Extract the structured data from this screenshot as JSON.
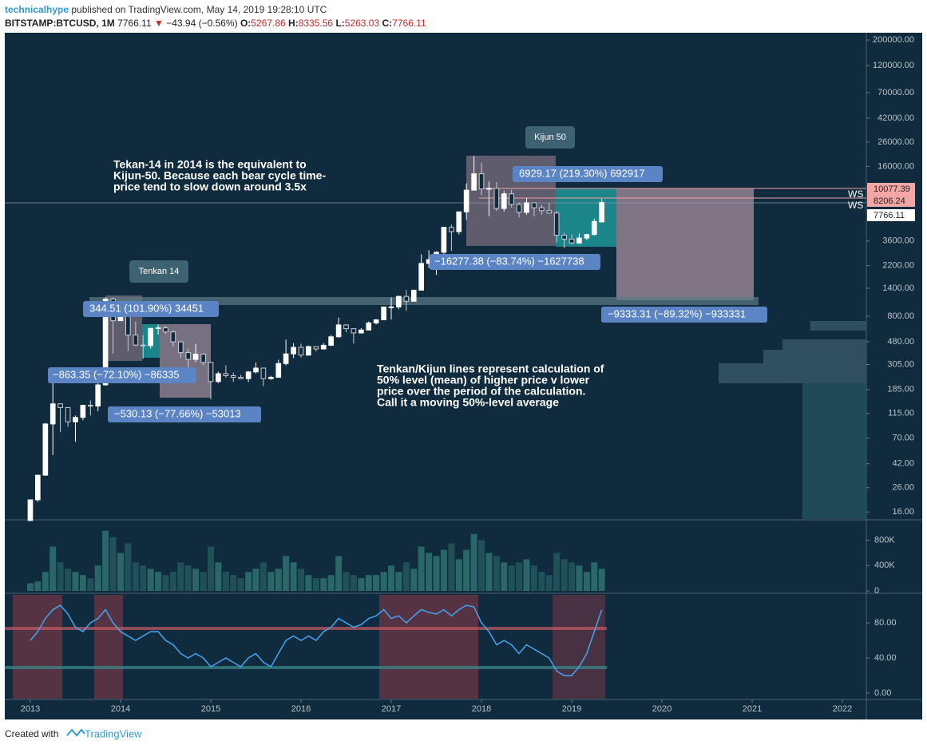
{
  "header": {
    "author": "technicalhype",
    "published": "published on TradingView.com, May 14, 2019 19:28:10 UTC",
    "symbol": "BITSTAMP:BTCUSD, 1M",
    "last": "7766.11",
    "arrow": "▼",
    "change": "−43.94 (−0.56%)",
    "o_label": "O:",
    "o": "5267.86",
    "h_label": "H:",
    "h": "8335.56",
    "l_label": "L:",
    "l": "5263.03",
    "c_label": "C:",
    "c": "7766.11"
  },
  "chart_data": {
    "type": "candlestick",
    "log_scale": true,
    "up_color": "#ffffff",
    "down_color": "#c9cfd4",
    "x": [
      2013.0,
      2013.083,
      2013.167,
      2013.25,
      2013.333,
      2013.417,
      2013.5,
      2013.583,
      2013.667,
      2013.75,
      2013.833,
      2013.917,
      2014.0,
      2014.083,
      2014.167,
      2014.25,
      2014.333,
      2014.417,
      2014.5,
      2014.583,
      2014.667,
      2014.75,
      2014.833,
      2014.917,
      2015.0,
      2015.083,
      2015.167,
      2015.25,
      2015.333,
      2015.417,
      2015.5,
      2015.583,
      2015.667,
      2015.75,
      2015.833,
      2015.917,
      2016.0,
      2016.083,
      2016.167,
      2016.25,
      2016.333,
      2016.417,
      2016.5,
      2016.583,
      2016.667,
      2016.75,
      2016.833,
      2016.917,
      2017.0,
      2017.083,
      2017.167,
      2017.25,
      2017.333,
      2017.417,
      2017.5,
      2017.583,
      2017.667,
      2017.75,
      2017.833,
      2017.917,
      2018.0,
      2018.083,
      2018.167,
      2018.25,
      2018.333,
      2018.417,
      2018.5,
      2018.583,
      2018.667,
      2018.75,
      2018.833,
      2018.917,
      2019.0,
      2019.083,
      2019.167,
      2019.25,
      2019.333
    ],
    "open": [
      13.5,
      20.4,
      33.4,
      93,
      139,
      129,
      97,
      106,
      135,
      133,
      203,
      1129,
      732,
      800,
      550,
      450,
      445,
      628,
      635,
      585,
      480,
      387,
      338,
      375,
      318,
      217,
      254,
      244,
      236,
      230,
      263,
      284,
      230,
      236,
      311,
      377,
      430,
      368,
      437,
      416,
      448,
      531,
      673,
      624,
      573,
      608,
      700,
      745,
      963,
      965,
      1190,
      1080,
      1348,
      2300,
      2480,
      2875,
      4735,
      4340,
      6450,
      9950,
      13800,
      10200,
      10300,
      6900,
      9240,
      7480,
      6390,
      7730,
      7000,
      6610,
      6300,
      4040,
      3740,
      3460,
      3820,
      4100,
      5267.86
    ],
    "high": [
      20.4,
      33.5,
      95,
      266,
      140,
      130,
      110,
      135,
      149,
      230,
      1163,
      1160,
      1000,
      800,
      720,
      550,
      630,
      680,
      660,
      600,
      490,
      420,
      460,
      385,
      320,
      265,
      300,
      260,
      248,
      267,
      317,
      285,
      243,
      336,
      502,
      467,
      463,
      444,
      440,
      467,
      550,
      780,
      680,
      627,
      630,
      720,
      755,
      970,
      1165,
      1210,
      1350,
      1350,
      2760,
      3000,
      2930,
      4770,
      5000,
      6450,
      11400,
      19700,
      17200,
      11800,
      11700,
      9800,
      10000,
      7770,
      8500,
      7750,
      7400,
      7700,
      6550,
      4250,
      4120,
      4200,
      4140,
      5630,
      8335.56
    ],
    "low": [
      13.3,
      19.6,
      33,
      50,
      79,
      88,
      65,
      100,
      110,
      120,
      200,
      380,
      730,
      400,
      440,
      340,
      420,
      555,
      560,
      440,
      350,
      275,
      320,
      300,
      152,
      210,
      235,
      215,
      228,
      215,
      255,
      198,
      225,
      236,
      300,
      347,
      350,
      365,
      396,
      412,
      440,
      520,
      580,
      465,
      567,
      604,
      680,
      745,
      750,
      920,
      890,
      1070,
      1340,
      2100,
      1830,
      2700,
      2950,
      4100,
      5500,
      10700,
      9000,
      5900,
      6550,
      6500,
      7050,
      5750,
      6100,
      5880,
      6100,
      6200,
      3500,
      3120,
      3350,
      3390,
      3650,
      4020,
      5263.03
    ],
    "close": [
      20.4,
      33.4,
      93,
      139,
      129,
      97,
      106,
      135,
      133,
      203,
      1129,
      732,
      800,
      550,
      450,
      445,
      628,
      635,
      585,
      480,
      387,
      338,
      375,
      318,
      217,
      254,
      244,
      236,
      230,
      263,
      284,
      230,
      236,
      311,
      377,
      430,
      368,
      437,
      416,
      448,
      531,
      673,
      624,
      573,
      608,
      700,
      745,
      963,
      965,
      1190,
      1080,
      1348,
      2300,
      2480,
      2875,
      4735,
      4340,
      6450,
      9950,
      13800,
      10200,
      10300,
      6900,
      9240,
      7480,
      6390,
      7730,
      7000,
      6610,
      6300,
      4040,
      3740,
      3460,
      3820,
      4100,
      5320,
      7766.11
    ],
    "xlim": [
      2012.726,
      2022.265
    ],
    "xticks": [
      2013,
      2014,
      2015,
      2016,
      2017,
      2018,
      2019,
      2020,
      2021,
      2022
    ],
    "ylim": [
      13.9,
      224000
    ],
    "yticks": [
      {
        "value": 200000,
        "label": "200000.00"
      },
      {
        "value": 120000,
        "label": "120000.00"
      },
      {
        "value": 70000,
        "label": "70000.00"
      },
      {
        "value": 42000,
        "label": "42000.00"
      },
      {
        "value": 26000,
        "label": "26000.00"
      },
      {
        "value": 16000,
        "label": "16000.00"
      },
      {
        "value": 3600,
        "label": "3600.00"
      },
      {
        "value": 2200,
        "label": "2200.00"
      },
      {
        "value": 1400,
        "label": "1400.00"
      },
      {
        "value": 800,
        "label": "800.00"
      },
      {
        "value": 480,
        "label": "480.00"
      },
      {
        "value": 305,
        "label": "305.00"
      },
      {
        "value": 185,
        "label": "185.00"
      },
      {
        "value": 115,
        "label": "115.00"
      },
      {
        "value": 70,
        "label": "70.00"
      },
      {
        "value": 42,
        "label": "42.00"
      },
      {
        "value": 26,
        "label": "26.00"
      },
      {
        "value": 16,
        "label": "16.00"
      }
    ],
    "volume": {
      "color": "#2b6a6c",
      "values": [
        120000,
        150000,
        300000,
        700000,
        450000,
        350000,
        300000,
        250000,
        200000,
        400000,
        950000,
        850000,
        600000,
        750000,
        450000,
        400000,
        350000,
        300000,
        250000,
        300000,
        450000,
        400000,
        350000,
        300000,
        700000,
        450000,
        300000,
        250000,
        200000,
        300000,
        350000,
        450000,
        300000,
        350000,
        550000,
        450000,
        350000,
        250000,
        200000,
        200000,
        250000,
        550000,
        300000,
        250000,
        200000,
        250000,
        250000,
        300000,
        400000,
        300000,
        450000,
        350000,
        700000,
        600000,
        550000,
        650000,
        750000,
        500000,
        650000,
        900000,
        800000,
        600000,
        550000,
        450000,
        400000,
        450000,
        500000,
        400000,
        300000,
        250000,
        600000,
        500000,
        450000,
        400000,
        300000,
        450000,
        350000
      ],
      "ylim": [
        0,
        1110000
      ],
      "yticks": [
        {
          "value": 800000,
          "label": "800K"
        },
        {
          "value": 400000,
          "label": "400K"
        },
        0
      ]
    },
    "oscillator": {
      "color": "#42a5f5",
      "values": [
        60,
        70,
        85,
        95,
        100,
        90,
        75,
        70,
        80,
        85,
        95,
        80,
        70,
        65,
        60,
        65,
        70,
        70,
        60,
        55,
        45,
        40,
        45,
        40,
        30,
        35,
        40,
        35,
        30,
        40,
        45,
        35,
        30,
        45,
        60,
        65,
        60,
        65,
        60,
        70,
        75,
        85,
        80,
        75,
        78,
        85,
        88,
        95,
        85,
        88,
        80,
        88,
        95,
        92,
        90,
        95,
        88,
        95,
        100,
        98,
        80,
        70,
        55,
        60,
        55,
        45,
        55,
        50,
        45,
        40,
        25,
        20,
        20,
        30,
        45,
        70,
        95
      ],
      "ylim": [
        -6.4,
        111.8
      ],
      "yticks": [
        {
          "value": 80,
          "label": "80.00"
        },
        {
          "value": 40,
          "label": "40.00"
        },
        {
          "value": 0,
          "label": "0.00"
        }
      ]
    }
  },
  "price_labels": [
    10077.39,
    8206.24,
    7766.11
  ],
  "ws_labels": [
    "WS",
    "WS"
  ],
  "measures": [
    "344.51 (101.90%) 34451",
    "−863.35 (−72.10%) −86335",
    "−530.13 (−77.66%) −53013",
    "−16277.38 (−83.74%) −1627738",
    "6929.17 (219.30%) 692917",
    "−9333.31 (−89.32%) −933331"
  ],
  "callouts": [
    "Tenkan 14",
    "Kijun 50"
  ],
  "notes": [
    [
      "Tekan-14 in 2014 is the equivalent to",
      "Kijun-50. Because each bear cycle time-",
      "price tend to slow down around 3.5x"
    ],
    [
      "Tenkan/Kijun lines represent calculation of",
      "50% level (mean) of higher price  v lower",
      "price over the period of the calculation.",
      " Call it a moving 50%-level average"
    ]
  ],
  "footer": {
    "created": "Created with",
    "brand": "TradingView"
  }
}
